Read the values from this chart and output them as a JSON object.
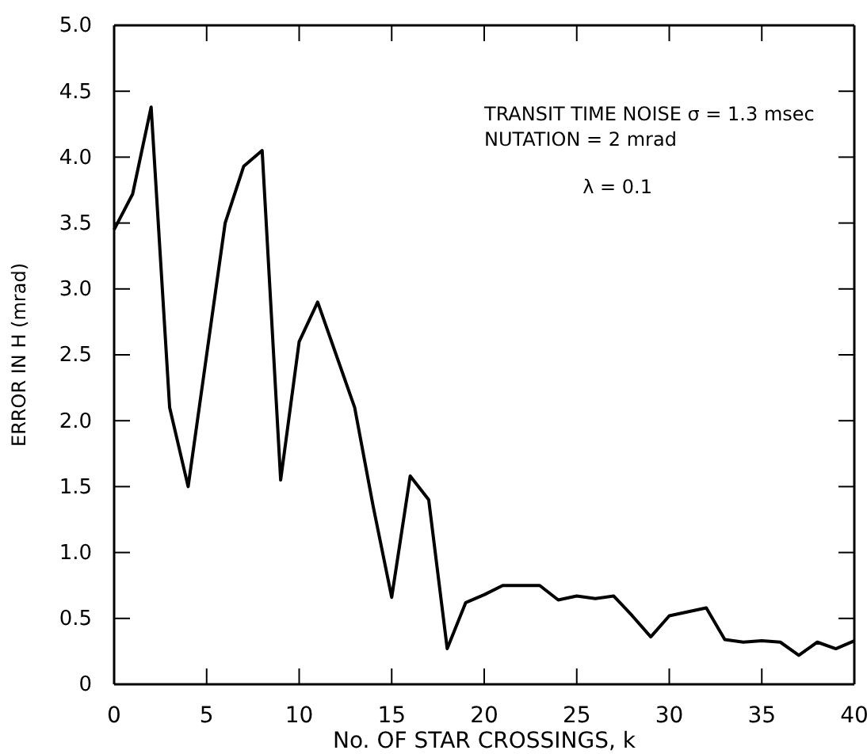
{
  "chart_data": {
    "type": "line",
    "xlabel": "No. OF STAR CROSSINGS, k",
    "ylabel": "ERROR IN H (mrad)",
    "x": [
      0,
      1,
      2,
      3,
      4,
      5,
      6,
      7,
      8,
      9,
      10,
      11,
      12,
      13,
      14,
      15,
      16,
      17,
      18,
      19,
      20,
      21,
      22,
      23,
      24,
      25,
      26,
      27,
      28,
      29,
      30,
      31,
      32,
      33,
      34,
      35,
      36,
      37,
      38,
      39,
      40
    ],
    "series": [
      {
        "color": "#000000",
        "values": [
          3.45,
          3.72,
          4.38,
          2.1,
          1.5,
          2.5,
          3.5,
          3.93,
          4.05,
          1.55,
          2.6,
          2.9,
          2.5,
          2.1,
          1.35,
          0.66,
          1.58,
          1.4,
          0.27,
          0.62,
          0.68,
          0.75,
          0.75,
          0.75,
          0.64,
          0.67,
          0.65,
          0.67,
          0.52,
          0.36,
          0.52,
          0.55,
          0.58,
          0.34,
          0.32,
          0.33,
          0.32,
          0.22,
          0.32,
          0.27,
          0.33
        ]
      }
    ],
    "xlim": [
      0,
      40
    ],
    "xticks": [
      0,
      5,
      10,
      15,
      20,
      25,
      30,
      35,
      40
    ],
    "ylim": [
      0,
      5
    ],
    "yticks": [
      0,
      0.5,
      {
        "value": 1,
        "label": "1.0"
      },
      1.5,
      {
        "value": 2,
        "label": "2.0"
      },
      2.5,
      {
        "value": 3,
        "label": "3.0"
      },
      3.5,
      {
        "value": 4,
        "label": "4.0"
      },
      4.5,
      {
        "value": 5,
        "label": "5.0"
      }
    ],
    "annotations": [
      "TRANSIT TIME NOISE σ = 1.3 msec",
      "NUTATION = 2 mrad",
      "λ = 0.1"
    ],
    "grid": false,
    "marker": "none",
    "line_style": "solid"
  }
}
